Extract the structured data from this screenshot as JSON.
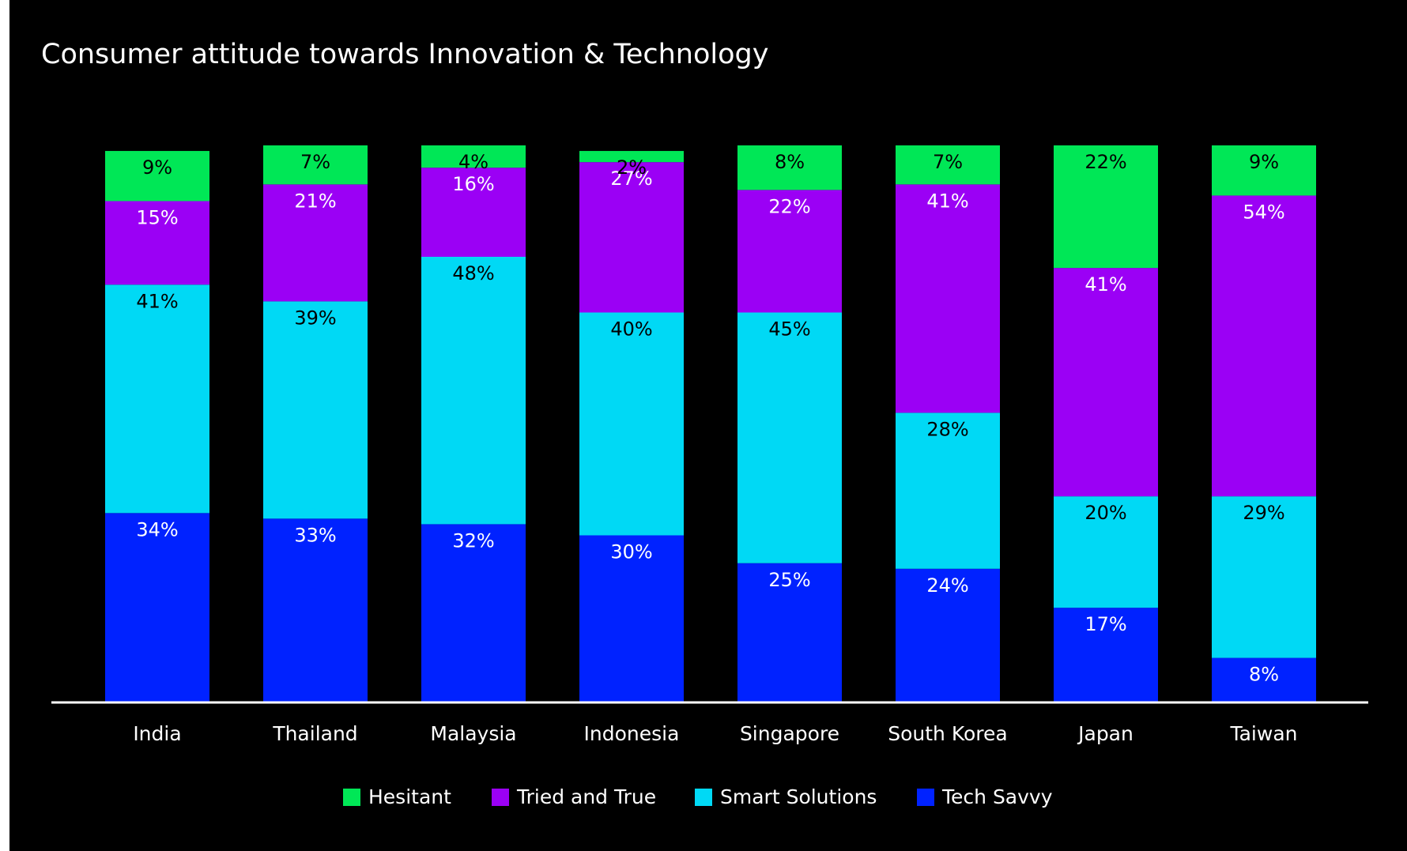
{
  "chart_data": {
    "type": "stacked_bar",
    "title": "Consumer attitude towards Innovation & Technology",
    "categories": [
      "India",
      "Thailand",
      "Malaysia",
      "Indonesia",
      "Singapore",
      "South Korea",
      "Japan",
      "Taiwan"
    ],
    "ylim": [
      0,
      100
    ],
    "series": [
      {
        "name": "Tech Savvy",
        "color": "#0022ff",
        "label_color": "#ffffff",
        "values": [
          34,
          33,
          32,
          30,
          25,
          24,
          17,
          8
        ],
        "value_labels": [
          "34%",
          "33%",
          "32%",
          "30%",
          "25%",
          "24%",
          "17%",
          "8%"
        ]
      },
      {
        "name": "Smart Solutions",
        "color": "#00d9f5",
        "label_color": "#000000",
        "values": [
          41,
          39,
          48,
          40,
          45,
          28,
          20,
          29
        ],
        "value_labels": [
          "41%",
          "39%",
          "48%",
          "40%",
          "45%",
          "28%",
          "20%",
          "29%"
        ]
      },
      {
        "name": "Tried and True",
        "color": "#9b00f5",
        "label_color": "#ffffff",
        "values": [
          15,
          21,
          16,
          27,
          22,
          41,
          41,
          54
        ],
        "value_labels": [
          "15%",
          "21%",
          "16%",
          "27%",
          "22%",
          "41%",
          "41%",
          "54%"
        ]
      },
      {
        "name": "Hesitant",
        "color": "#00e756",
        "label_color": "#000000",
        "values": [
          9,
          7,
          4,
          2,
          8,
          7,
          22,
          9
        ],
        "value_labels": [
          "9%",
          "7%",
          "4%",
          "2%",
          "8%",
          "7%",
          "22%",
          "9%"
        ]
      }
    ],
    "legend_order": [
      3,
      2,
      1,
      0
    ]
  }
}
